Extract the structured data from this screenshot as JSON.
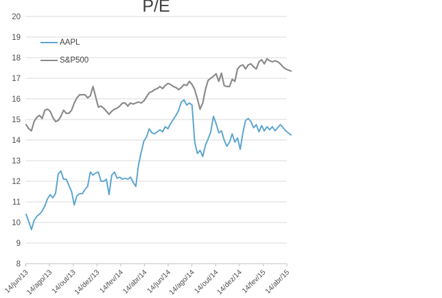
{
  "chart_data": {
    "type": "line",
    "title": "P/E",
    "x_unit": "weekly",
    "x_tick_labels": [
      "14/jun/13",
      "14/ago/13",
      "14/out/13",
      "14/dez/13",
      "14/fev/14",
      "14/abr/14",
      "14/jun/14",
      "14/ago/14",
      "14/out/14",
      "14/dez/14",
      "14/fev/15",
      "14/abr/15"
    ],
    "y_ticks": [
      20,
      19,
      18,
      17,
      16,
      15,
      14,
      13,
      12,
      11,
      10,
      9,
      8
    ],
    "ylim": [
      8,
      20
    ],
    "grid": "horizontal",
    "legend_position": "top-left",
    "series": [
      {
        "name": "AAPL",
        "color": "#5BA5D0",
        "values": [
          10.4,
          10.05,
          9.65,
          10.1,
          10.3,
          10.4,
          10.55,
          10.8,
          11.15,
          11.35,
          11.2,
          11.4,
          12.35,
          12.5,
          12.1,
          12.1,
          11.8,
          11.5,
          10.85,
          11.3,
          11.4,
          11.4,
          11.6,
          11.75,
          12.45,
          12.3,
          12.4,
          12.45,
          12.0,
          12.0,
          12.1,
          11.35,
          12.3,
          12.45,
          12.15,
          12.2,
          12.1,
          12.15,
          12.1,
          12.2,
          11.95,
          11.75,
          12.8,
          13.4,
          13.95,
          14.15,
          14.55,
          14.35,
          14.3,
          14.4,
          14.5,
          14.4,
          14.65,
          14.55,
          14.8,
          15.0,
          15.2,
          15.45,
          15.85,
          15.95,
          15.7,
          15.8,
          15.7,
          13.9,
          13.35,
          13.5,
          13.2,
          13.75,
          14.05,
          14.4,
          15.15,
          14.8,
          14.35,
          14.45,
          14.0,
          13.7,
          13.9,
          14.3,
          13.9,
          14.1,
          13.55,
          14.35,
          14.95,
          15.05,
          14.9,
          14.6,
          14.75,
          14.4,
          14.7,
          14.45,
          14.65,
          14.5,
          14.65,
          14.45,
          14.6,
          14.75,
          14.6,
          14.45,
          14.35,
          14.25
        ]
      },
      {
        "name": "S&P500",
        "color": "#8A8A8A",
        "values": [
          14.75,
          14.55,
          14.45,
          14.9,
          15.1,
          15.2,
          15.05,
          15.45,
          15.5,
          15.4,
          15.1,
          14.9,
          14.95,
          15.15,
          15.45,
          15.3,
          15.3,
          15.45,
          15.8,
          16.05,
          16.2,
          16.2,
          16.2,
          16.05,
          16.15,
          16.6,
          16.1,
          15.6,
          15.65,
          15.55,
          15.4,
          15.25,
          15.4,
          15.5,
          15.55,
          15.65,
          15.8,
          15.8,
          15.65,
          15.8,
          15.75,
          15.8,
          15.85,
          15.8,
          15.9,
          16.1,
          16.3,
          16.35,
          16.45,
          16.5,
          16.6,
          16.5,
          16.65,
          16.75,
          16.7,
          16.6,
          16.55,
          16.45,
          16.55,
          16.7,
          16.65,
          16.85,
          16.7,
          16.45,
          16.0,
          15.5,
          15.8,
          16.45,
          16.9,
          17.0,
          17.1,
          17.22,
          16.85,
          17.25,
          16.65,
          16.6,
          16.6,
          16.95,
          16.85,
          17.45,
          17.6,
          17.65,
          17.45,
          17.65,
          17.7,
          17.55,
          17.45,
          17.8,
          17.9,
          17.7,
          17.95,
          17.85,
          17.8,
          17.85,
          17.8,
          17.7,
          17.55,
          17.45,
          17.4,
          17.35
        ]
      }
    ]
  },
  "colors": {
    "gridline": "#D9D9D9",
    "axis_line": "#BFBFBF",
    "tick_text": "#4D4D4D",
    "title_text": "#3F3F3F"
  }
}
